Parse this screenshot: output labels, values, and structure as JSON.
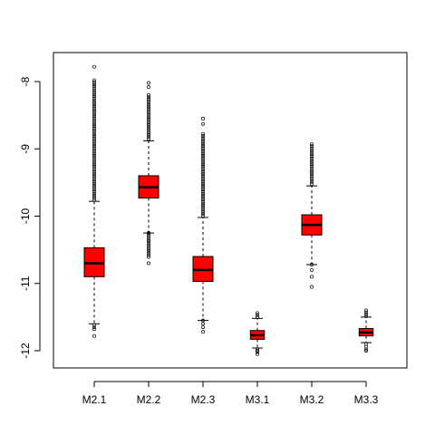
{
  "chart_data": {
    "type": "boxplot",
    "title": "",
    "xlabel": "",
    "ylabel": "",
    "categories": [
      "M2.1",
      "M2.2",
      "M2.3",
      "M3.1",
      "M3.2",
      "M3.3"
    ],
    "yticks": [
      -8,
      -9,
      -10,
      -11,
      -12
    ],
    "ytick_labels": [
      "-8",
      "-9",
      "-10",
      "-11",
      "-12"
    ],
    "ylim": [
      -12.25,
      -7.6
    ],
    "box_color": "#ff0000",
    "boxes": [
      {
        "label": "M2.1",
        "q1": -10.9,
        "median": -10.7,
        "q3": -10.47,
        "whisker_low": -11.6,
        "whisker_high": -9.78,
        "outliers_low": [
          -11.62,
          -11.65,
          -11.68,
          -11.78
        ],
        "outliers_high_range": [
          -9.78,
          -7.98
        ],
        "outliers_high_sparse": [
          -7.78
        ]
      },
      {
        "label": "M2.2",
        "q1": -9.73,
        "median": -9.57,
        "q3": -9.4,
        "whisker_low": -10.25,
        "whisker_high": -8.88,
        "outliers_low": [
          -10.25,
          -10.7
        ],
        "outliers_low_range": [
          -10.25,
          -10.62
        ],
        "outliers_high_range": [
          -8.88,
          -8.2
        ],
        "outliers_high_sparse": [
          -8.08,
          -8.02
        ]
      },
      {
        "label": "M2.3",
        "q1": -10.97,
        "median": -10.8,
        "q3": -10.6,
        "whisker_low": -11.55,
        "whisker_high": -10.02,
        "outliers_low": [
          -11.55,
          -11.6,
          -11.65,
          -11.72
        ],
        "outliers_high_range": [
          -10.02,
          -8.78
        ],
        "outliers_high_sparse": [
          -8.63,
          -8.55
        ]
      },
      {
        "label": "M3.1",
        "q1": -11.83,
        "median": -11.77,
        "q3": -11.7,
        "whisker_low": -11.96,
        "whisker_high": -11.52,
        "outliers_low": [
          -11.98,
          -12.0,
          -12.02,
          -12.05
        ],
        "outliers_high_range": [
          -11.52,
          -11.44
        ],
        "outliers_high_sparse": []
      },
      {
        "label": "M3.2",
        "q1": -10.28,
        "median": -10.13,
        "q3": -9.98,
        "whisker_low": -10.72,
        "whisker_high": -9.55,
        "outliers_low": [
          -10.72,
          -10.8,
          -10.9,
          -11.05
        ],
        "outliers_high_range": [
          -9.55,
          -8.93
        ],
        "outliers_high_sparse": []
      },
      {
        "label": "M3.3",
        "q1": -11.78,
        "median": -11.73,
        "q3": -11.67,
        "whisker_low": -11.88,
        "whisker_high": -11.5,
        "outliers_low": [
          -11.9,
          -11.94,
          -11.98,
          -12.0
        ],
        "outliers_high_range": [
          -11.5,
          -11.4
        ],
        "outliers_high_sparse": []
      }
    ]
  }
}
